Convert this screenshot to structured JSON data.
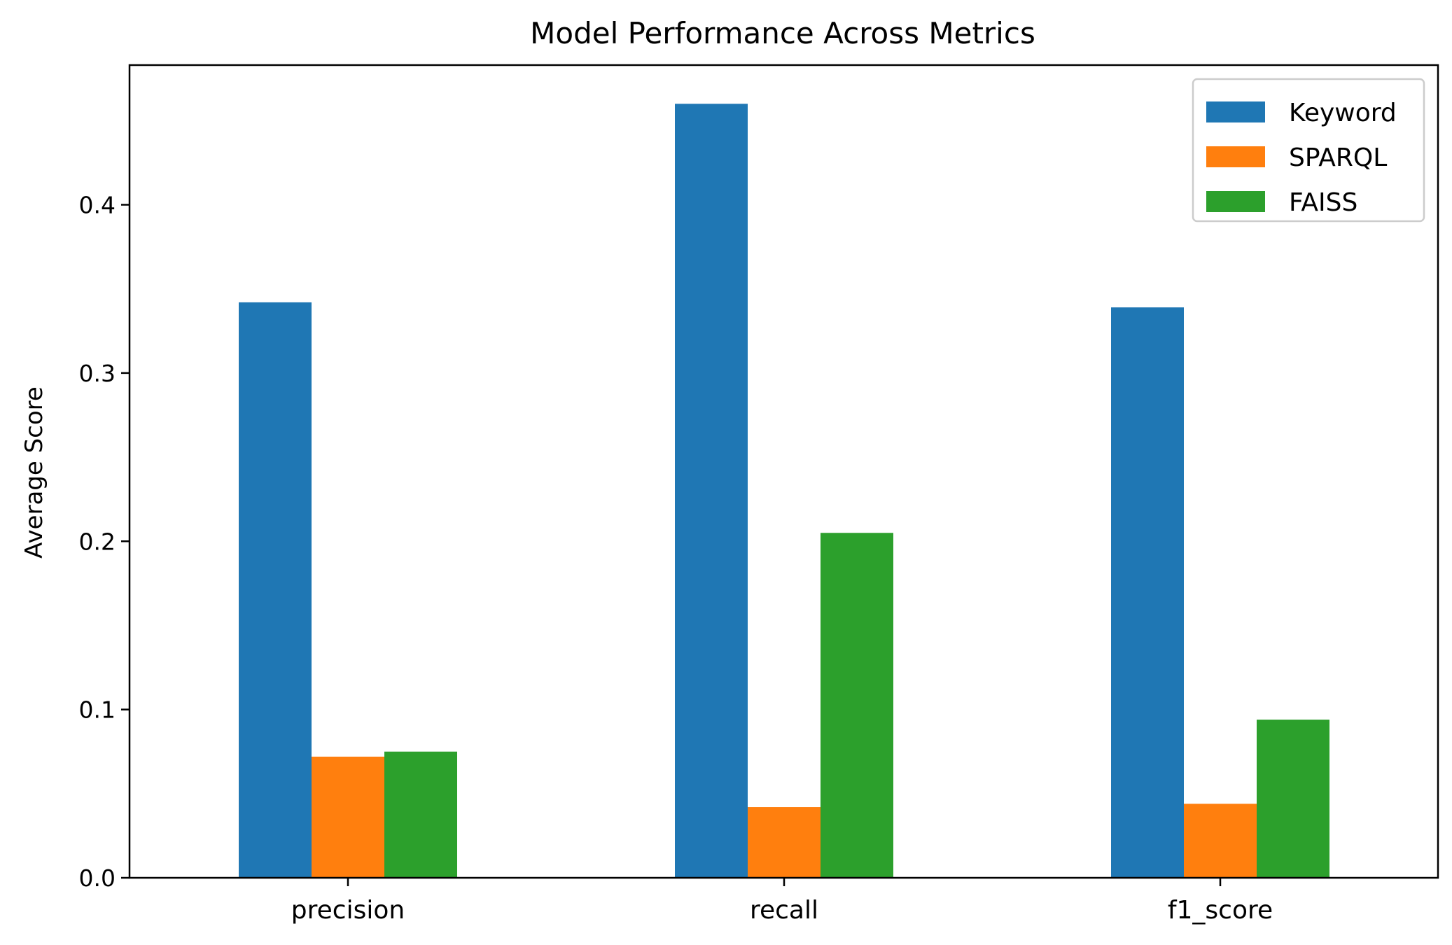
{
  "chart_data": {
    "type": "bar",
    "title": "Model Performance Across Metrics",
    "xlabel": "",
    "ylabel": "Average Score",
    "categories": [
      "precision",
      "recall",
      "f1_score"
    ],
    "series": [
      {
        "name": "Keyword",
        "color": "#1f77b4",
        "values": [
          0.342,
          0.46,
          0.339
        ]
      },
      {
        "name": "SPARQL",
        "color": "#ff7f0e",
        "values": [
          0.072,
          0.042,
          0.044
        ]
      },
      {
        "name": "FAISS",
        "color": "#2ca02c",
        "values": [
          0.075,
          0.205,
          0.094
        ]
      }
    ],
    "ylim": [
      0,
      0.483
    ],
    "yticks": [
      0.0,
      0.1,
      0.2,
      0.3,
      0.4
    ],
    "ytick_labels": [
      "0.0",
      "0.1",
      "0.2",
      "0.3",
      "0.4"
    ],
    "grid": false,
    "legend_position": "top-right"
  }
}
